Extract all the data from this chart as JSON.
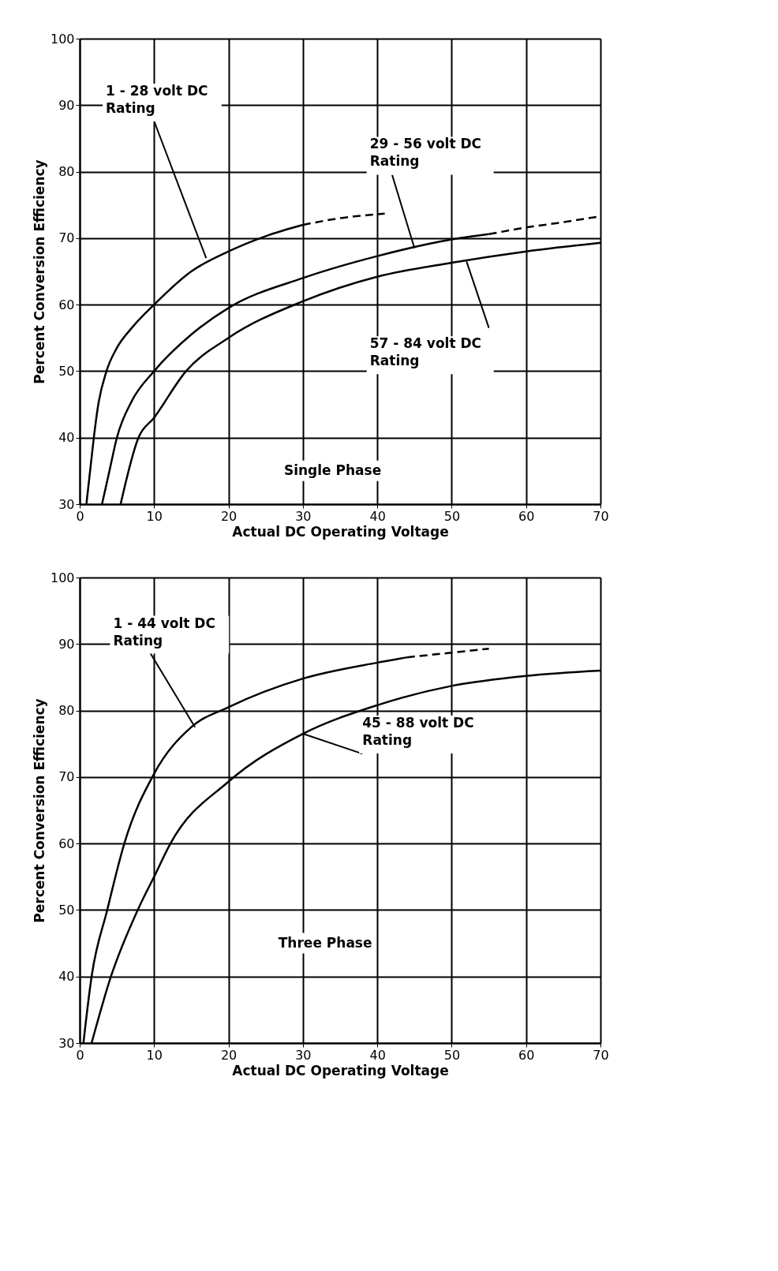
{
  "chart_data": [
    {
      "type": "line",
      "subtitle": "Single Phase",
      "xlabel": "Actual DC Operating Voltage",
      "ylabel": "Percent Conversion Efficiency",
      "xlim": [
        0,
        70
      ],
      "xticks": [
        0,
        10,
        20,
        30,
        40,
        50,
        60,
        70
      ],
      "ylim": [
        30,
        100
      ],
      "yticks": [
        30,
        40,
        50,
        60,
        70,
        80,
        90,
        100
      ],
      "grid": true,
      "marker": "none",
      "series": [
        {
          "color": "#000000",
          "line_style": "solid",
          "x": [
            0.9,
            1.5,
            1.9,
            2.5,
            3.6,
            5,
            7,
            10,
            15,
            20,
            25,
            30
          ],
          "values": [
            30,
            36,
            40,
            45,
            50,
            53.5,
            56.5,
            60,
            65,
            68,
            70.3,
            72
          ]
        },
        {
          "color": "#000000",
          "line_style": "dashed",
          "x": [
            30,
            35,
            40,
            41
          ],
          "values": [
            72,
            73,
            73.6,
            73.7
          ]
        },
        {
          "color": "#000000",
          "line_style": "solid",
          "x": [
            3,
            4,
            5,
            7,
            10,
            15,
            20,
            30,
            40,
            50,
            55
          ],
          "values": [
            30,
            35,
            40,
            45.5,
            50,
            55.5,
            59.5,
            64,
            67.3,
            69.8,
            70.6
          ]
        },
        {
          "color": "#000000",
          "line_style": "dashed",
          "x": [
            55,
            60,
            65,
            70
          ],
          "values": [
            70.6,
            71.6,
            72.4,
            73.3
          ]
        },
        {
          "color": "#000000",
          "line_style": "solid",
          "x": [
            5.5,
            7.9,
            10,
            14.3,
            20,
            30,
            40,
            50,
            60,
            70
          ],
          "values": [
            30,
            40,
            43,
            50,
            55,
            60.5,
            64.2,
            66.3,
            68,
            69.3
          ]
        }
      ],
      "annotations": [
        {
          "text": "1 - 28 volt DC\nRating",
          "x": 17,
          "y": 67
        },
        {
          "text": "29 - 56 volt DC\nRating",
          "x": 45,
          "y": 68.5
        },
        {
          "text": "57 - 84 volt DC\nRating",
          "x": 52,
          "y": 66.5
        }
      ]
    },
    {
      "type": "line",
      "subtitle": "Three Phase",
      "xlabel": "Actual DC Operating Voltage",
      "ylabel": "Percent Conversion Efficiency",
      "xlim": [
        0,
        70
      ],
      "xticks": [
        0,
        10,
        20,
        30,
        40,
        50,
        60,
        70
      ],
      "ylim": [
        30,
        100
      ],
      "yticks": [
        30,
        40,
        50,
        60,
        70,
        80,
        90,
        100
      ],
      "grid": true,
      "marker": "none",
      "series": [
        {
          "color": "#000000",
          "line_style": "solid",
          "x": [
            0.5,
            1.6,
            3.7,
            6,
            10,
            15,
            20,
            30,
            40,
            44
          ],
          "values": [
            30,
            40,
            50,
            60,
            70.5,
            77.5,
            80.5,
            84.8,
            87.2,
            88
          ]
        },
        {
          "color": "#000000",
          "line_style": "dashed",
          "x": [
            44,
            50,
            55
          ],
          "values": [
            88,
            88.7,
            89.3
          ]
        },
        {
          "color": "#000000",
          "line_style": "solid",
          "x": [
            1.6,
            4.2,
            7.8,
            10,
            12.2,
            20,
            30,
            40,
            50,
            60,
            70
          ],
          "values": [
            30,
            40,
            50,
            55,
            60,
            69.3,
            76.5,
            80.8,
            83.7,
            85.2,
            86
          ]
        }
      ],
      "annotations": [
        {
          "text": "1 - 44 volt DC\nRating",
          "x": 15.5,
          "y": 77.5
        },
        {
          "text": "45 - 88 volt DC\nRating",
          "x": 30,
          "y": 76.5
        }
      ]
    }
  ]
}
